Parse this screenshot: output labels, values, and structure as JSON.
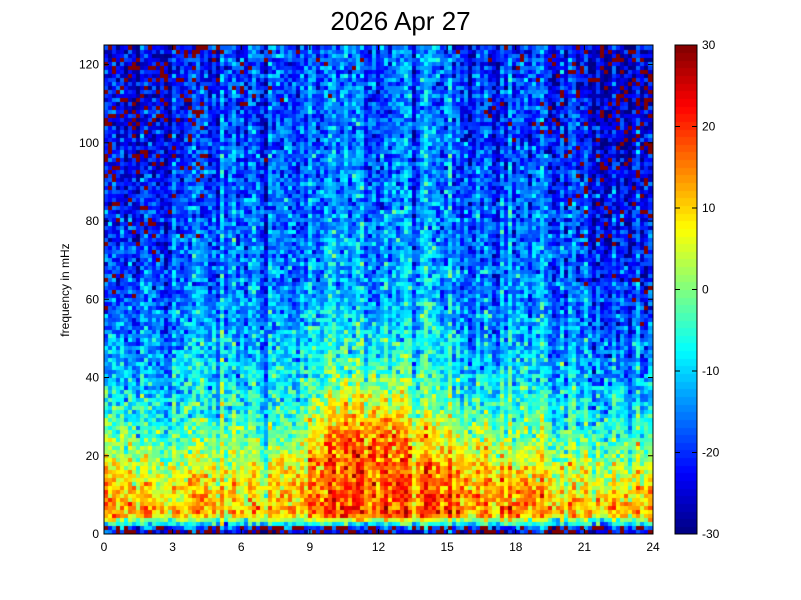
{
  "chart_data": {
    "type": "heatmap",
    "title": "2026 Apr 27",
    "xlabel": "",
    "ylabel": "frequency in mHz",
    "xlim": [
      0,
      24
    ],
    "ylim": [
      0,
      125
    ],
    "xticks": [
      "0",
      "3",
      "6",
      "9",
      "12",
      "15",
      "18",
      "21",
      "24"
    ],
    "yticks": [
      "0",
      "20",
      "40",
      "60",
      "80",
      "100",
      "120"
    ],
    "colorbar": {
      "range": [
        -30,
        30
      ],
      "ticks": [
        "-30",
        "-20",
        "-10",
        "0",
        "10",
        "20",
        "30"
      ],
      "colormap": "jet"
    },
    "approx_level_grid": {
      "hours": [
        0,
        2,
        4,
        6,
        8,
        10,
        12,
        14,
        16,
        18,
        20,
        22,
        24
      ],
      "frequencies_mHz": [
        1,
        5,
        15,
        25,
        35,
        45,
        60,
        80,
        100,
        125
      ],
      "values_dB": [
        [
          -22,
          -22,
          -22,
          -22,
          -22,
          -22,
          -22,
          -22,
          -22,
          -22,
          -22,
          -22,
          -22
        ],
        [
          14,
          12,
          12,
          11,
          12,
          18,
          20,
          18,
          18,
          17,
          12,
          11,
          13
        ],
        [
          8,
          6,
          6,
          6,
          8,
          16,
          18,
          14,
          14,
          10,
          6,
          5,
          6
        ],
        [
          -2,
          -3,
          -2,
          -2,
          -2,
          14,
          18,
          8,
          5,
          0,
          -3,
          -4,
          -4
        ],
        [
          -10,
          -9,
          -8,
          -8,
          -8,
          2,
          6,
          -2,
          -4,
          -6,
          -8,
          -10,
          -12
        ],
        [
          -15,
          -13,
          -11,
          -11,
          -10,
          -7,
          -4,
          -8,
          -9,
          -10,
          -12,
          -14,
          -16
        ],
        [
          -20,
          -17,
          -15,
          -14,
          -14,
          -13,
          -12,
          -12,
          -13,
          -14,
          -16,
          -18,
          -21
        ],
        [
          -23,
          -20,
          -18,
          -16,
          -16,
          -15,
          -15,
          -15,
          -15,
          -16,
          -18,
          -21,
          -23
        ],
        [
          -24,
          -22,
          -20,
          -18,
          -17,
          -17,
          -16,
          -16,
          -17,
          -18,
          -20,
          -23,
          -24
        ],
        [
          -25,
          -23,
          -21,
          -19,
          -18,
          -18,
          -17,
          -17,
          -18,
          -19,
          -21,
          -24,
          -25
        ]
      ]
    }
  }
}
